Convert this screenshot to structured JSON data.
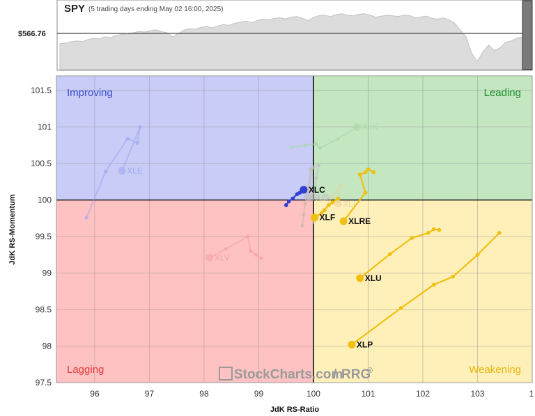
{
  "spy_panel": {
    "symbol": "SPY",
    "subtitle": "(5 trading days ending May 02 16:00, 2025)",
    "price_label": "$566.76"
  },
  "chart_data": {
    "type": "scatter",
    "subtype": "relative-rotation-graph",
    "xlabel": "JdK RS-Ratio",
    "ylabel": "JdK RS-Momentum",
    "xlim": [
      95.3,
      104
    ],
    "ylim": [
      97.5,
      101.7
    ],
    "x_ticks": [
      "96",
      "97",
      "98",
      "99",
      "100",
      "101",
      "102",
      "103",
      "1"
    ],
    "y_ticks": [
      "101.5",
      "101",
      "100.5",
      "100",
      "99.5",
      "99",
      "98.5",
      "98",
      "97.5"
    ],
    "grid": true,
    "quadrants": [
      {
        "name": "Improving",
        "color": "#3b4fd0",
        "fill": "#c8ccf6"
      },
      {
        "name": "Leading",
        "color": "#1f8f2a",
        "fill": "#c4e6c1"
      },
      {
        "name": "Lagging",
        "color": "#e03b3b",
        "fill": "#ffc2c2"
      },
      {
        "name": "Weakening",
        "color": "#e7b40c",
        "fill": "#fff0ba"
      }
    ],
    "series": [
      {
        "name": "XLE",
        "color": "#9aa6f0",
        "faded": true,
        "points": [
          [
            95.85,
            99.76
          ],
          [
            96.2,
            100.39
          ],
          [
            96.6,
            100.84
          ],
          [
            96.78,
            100.78
          ],
          [
            96.83,
            101.0
          ],
          [
            96.5,
            100.4
          ]
        ]
      },
      {
        "name": "XLK",
        "color": "#a6d8a6",
        "faded": true,
        "points": [
          [
            99.6,
            100.72
          ],
          [
            99.85,
            100.75
          ],
          [
            100.05,
            100.77
          ],
          [
            100.12,
            100.71
          ],
          [
            100.45,
            100.84
          ],
          [
            100.8,
            101.0
          ]
        ]
      },
      {
        "name": "XLV",
        "color": "#f3a0a6",
        "faded": true,
        "points": [
          [
            99.05,
            99.2
          ],
          [
            98.95,
            99.25
          ],
          [
            98.85,
            99.3
          ],
          [
            98.8,
            99.5
          ],
          [
            98.4,
            99.33
          ],
          [
            98.1,
            99.21
          ]
        ]
      },
      {
        "name": "XLY",
        "color": "#c7b8a2",
        "faded": true,
        "points": [
          [
            99.8,
            99.65
          ],
          [
            99.82,
            99.8
          ],
          [
            99.85,
            99.95
          ],
          [
            99.9,
            100.15
          ],
          [
            99.95,
            100.42
          ],
          [
            99.95,
            100.03
          ]
        ]
      },
      {
        "name": "XLI",
        "color": "#e6d29a",
        "faded": true,
        "points": [
          [
            100.0,
            99.7
          ],
          [
            100.18,
            99.85
          ],
          [
            100.35,
            100.05
          ],
          [
            100.5,
            100.2
          ],
          [
            100.45,
            100.0
          ],
          [
            100.45,
            99.95
          ]
        ]
      },
      {
        "name": "XLB",
        "color": "#bfc0c8",
        "faded": true,
        "points": [
          [
            99.85,
            100.05
          ],
          [
            100.0,
            100.45
          ],
          [
            100.1,
            100.48
          ],
          [
            100.05,
            100.3
          ],
          [
            100.02,
            100.1
          ],
          [
            99.9,
            100.04
          ]
        ]
      },
      {
        "name": "XLC",
        "color": "#2f3fd0",
        "faded": false,
        "points": [
          [
            99.5,
            99.93
          ],
          [
            99.55,
            99.98
          ],
          [
            99.62,
            100.02
          ],
          [
            99.7,
            100.08
          ],
          [
            99.75,
            100.1
          ],
          [
            99.82,
            100.14
          ]
        ]
      },
      {
        "name": "XLRE",
        "color": "#f0c010",
        "faded": false,
        "points": [
          [
            101.1,
            100.38
          ],
          [
            101.0,
            100.42
          ],
          [
            100.95,
            100.38
          ],
          [
            100.85,
            100.35
          ],
          [
            100.95,
            100.1
          ],
          [
            100.55,
            99.71
          ]
        ]
      },
      {
        "name": "XLF",
        "color": "#f0c010",
        "faded": false,
        "points": [
          [
            100.45,
            100.02
          ],
          [
            100.35,
            99.97
          ],
          [
            100.28,
            99.93
          ],
          [
            100.2,
            99.86
          ],
          [
            100.15,
            99.82
          ],
          [
            100.02,
            99.76
          ]
        ]
      },
      {
        "name": "XLU",
        "color": "#f0c010",
        "faded": false,
        "points": [
          [
            102.3,
            99.59
          ],
          [
            102.2,
            99.6
          ],
          [
            102.1,
            99.55
          ],
          [
            101.8,
            99.48
          ],
          [
            101.4,
            99.26
          ],
          [
            100.85,
            98.93
          ]
        ]
      },
      {
        "name": "XLP",
        "color": "#f0c010",
        "faded": false,
        "points": [
          [
            103.4,
            99.55
          ],
          [
            103.0,
            99.25
          ],
          [
            102.55,
            98.95
          ],
          [
            102.2,
            98.84
          ],
          [
            101.6,
            98.52
          ],
          [
            100.7,
            98.02
          ]
        ]
      }
    ],
    "spy_series": {
      "name": "SPY",
      "values": [
        0.95,
        0.97,
        1.02,
        1.05,
        1.03,
        1.1,
        1.15,
        1.12,
        1.2,
        1.18,
        1.25,
        1.3,
        1.28,
        1.35,
        1.4,
        1.38,
        1.42,
        1.46,
        1.4,
        1.35,
        1.2,
        1.32,
        1.45,
        1.5,
        1.48,
        1.55,
        1.58,
        1.53,
        1.6,
        1.65,
        1.62,
        1.7,
        1.74,
        1.78,
        1.72,
        1.8,
        1.85,
        1.82,
        1.88,
        1.9,
        1.86,
        1.92,
        1.95,
        1.88,
        1.8,
        1.92,
        1.98,
        2.0,
        1.94,
        2.02,
        2.05,
        2.0,
        1.97,
        2.03,
        2.05,
        2.0,
        1.92,
        1.96,
        2.0,
        1.97,
        1.95,
        2.0,
        1.98,
        1.9,
        1.93,
        1.96,
        1.88,
        1.85,
        1.9,
        1.82,
        1.7,
        1.45,
        1.2,
        0.6,
        0.3,
        0.65,
        0.9,
        0.7,
        0.8,
        1.0,
        1.05,
        1.15,
        1.2
      ]
    }
  },
  "watermark": {
    "brand": "StockCharts.com",
    "sep": "/",
    "rrg": "RRG",
    "reg": "®"
  }
}
